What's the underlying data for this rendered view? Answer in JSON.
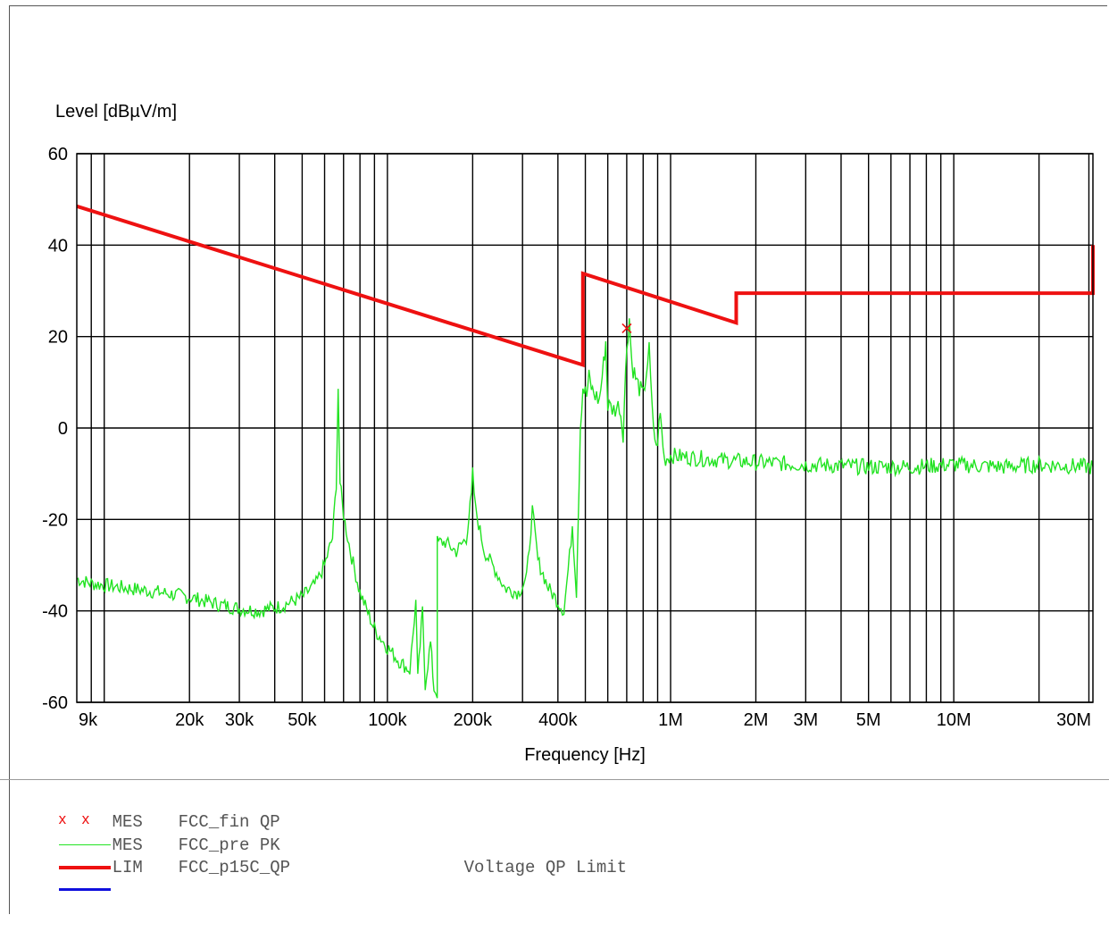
{
  "chart_data": {
    "type": "line",
    "ylabel": "Level [dBµV/m]",
    "xlabel": "Frequency [Hz]",
    "x_scale": "log",
    "xlim_hz": [
      8000,
      31000000
    ],
    "ylim": [
      -60,
      60
    ],
    "y_ticks": [
      60,
      40,
      20,
      0,
      -20,
      -40,
      -60
    ],
    "x_ticks": [
      {
        "value": 9000,
        "label": "9k"
      },
      {
        "value": 20000,
        "label": "20k"
      },
      {
        "value": 30000,
        "label": "30k"
      },
      {
        "value": 50000,
        "label": "50k"
      },
      {
        "value": 100000,
        "label": "100k"
      },
      {
        "value": 200000,
        "label": "200k"
      },
      {
        "value": 400000,
        "label": "400k"
      },
      {
        "value": 1000000,
        "label": "1M"
      },
      {
        "value": 2000000,
        "label": "2M"
      },
      {
        "value": 3000000,
        "label": "3M"
      },
      {
        "value": 5000000,
        "label": "5M"
      },
      {
        "value": 10000000,
        "label": "10M"
      },
      {
        "value": 30000000,
        "label": "30M"
      }
    ],
    "grid": true,
    "series": [
      {
        "name": "FCC_p15C_QP",
        "color": "#ee1111",
        "points": [
          [
            8000,
            48.5
          ],
          [
            490000,
            13.8
          ],
          [
            490000,
            33.8
          ],
          [
            1705000,
            23.0
          ],
          [
            1705000,
            29.5
          ],
          [
            31000000,
            29.5
          ],
          [
            31000000,
            40.0
          ]
        ]
      },
      {
        "name": "FCC_pre PK",
        "color": "#22e322",
        "points": [
          [
            8000,
            -33
          ],
          [
            9000,
            -34
          ],
          [
            12000,
            -35
          ],
          [
            16000,
            -36
          ],
          [
            20000,
            -37
          ],
          [
            25000,
            -38.5
          ],
          [
            30000,
            -39.5
          ],
          [
            35000,
            -40
          ],
          [
            42000,
            -39
          ],
          [
            50000,
            -37
          ],
          [
            56000,
            -34
          ],
          [
            60000,
            -30
          ],
          [
            64000,
            -24
          ],
          [
            66000,
            -12
          ],
          [
            67000,
            9
          ],
          [
            68000,
            -12
          ],
          [
            70000,
            -19
          ],
          [
            74000,
            -27
          ],
          [
            80000,
            -36
          ],
          [
            90000,
            -44
          ],
          [
            100000,
            -48
          ],
          [
            110000,
            -51
          ],
          [
            120000,
            -53
          ],
          [
            126000,
            -38
          ],
          [
            128000,
            -55
          ],
          [
            133000,
            -40
          ],
          [
            136000,
            -56
          ],
          [
            142000,
            -47
          ],
          [
            146000,
            -57
          ],
          [
            150000,
            -58
          ],
          [
            150000,
            -25
          ],
          [
            160000,
            -25
          ],
          [
            175000,
            -27
          ],
          [
            190000,
            -24
          ],
          [
            198000,
            -15
          ],
          [
            200000,
            -10
          ],
          [
            205000,
            -18
          ],
          [
            220000,
            -27
          ],
          [
            240000,
            -31
          ],
          [
            260000,
            -35
          ],
          [
            290000,
            -36
          ],
          [
            310000,
            -33
          ],
          [
            325000,
            -18
          ],
          [
            340000,
            -29
          ],
          [
            370000,
            -35
          ],
          [
            400000,
            -38
          ],
          [
            420000,
            -40
          ],
          [
            440000,
            -28
          ],
          [
            450000,
            -21
          ],
          [
            465000,
            -36
          ],
          [
            480000,
            0
          ],
          [
            490000,
            9
          ],
          [
            505000,
            7
          ],
          [
            515000,
            11
          ],
          [
            530000,
            8
          ],
          [
            560000,
            6
          ],
          [
            580000,
            14
          ],
          [
            590000,
            19
          ],
          [
            600000,
            5
          ],
          [
            630000,
            4
          ],
          [
            660000,
            5
          ],
          [
            680000,
            -1
          ],
          [
            700000,
            18
          ],
          [
            715000,
            24
          ],
          [
            730000,
            14
          ],
          [
            760000,
            10
          ],
          [
            800000,
            7
          ],
          [
            820000,
            12
          ],
          [
            840000,
            17
          ],
          [
            860000,
            4
          ],
          [
            890000,
            -5
          ],
          [
            920000,
            3
          ],
          [
            950000,
            -7
          ],
          [
            1000000,
            -6
          ],
          [
            1200000,
            -6.5
          ],
          [
            1500000,
            -7
          ],
          [
            2000000,
            -7.5
          ],
          [
            3000000,
            -8
          ],
          [
            5000000,
            -8.5
          ],
          [
            7000000,
            -8.5
          ],
          [
            10000000,
            -8
          ],
          [
            15000000,
            -8.5
          ],
          [
            20000000,
            -8
          ],
          [
            31000000,
            -8.5
          ]
        ]
      },
      {
        "name": "FCC_fin QP",
        "color": "#ee1111",
        "points": [
          [
            700000,
            21.8
          ]
        ]
      }
    ]
  },
  "legend": [
    {
      "symbol": "cross",
      "color": "#ee1111",
      "type": "MES",
      "name": "FCC_fin QP",
      "desc": ""
    },
    {
      "symbol": "line",
      "color": "#22e322",
      "type": "MES",
      "name": "FCC_pre PK",
      "desc": ""
    },
    {
      "symbol": "thick-line",
      "color": "#ee1111",
      "type": "LIM",
      "name": "FCC_p15C_QP",
      "desc": "Voltage QP Limit"
    },
    {
      "symbol": "thick-line",
      "color": "#1010dd",
      "type": "",
      "name": "",
      "desc": ""
    }
  ]
}
